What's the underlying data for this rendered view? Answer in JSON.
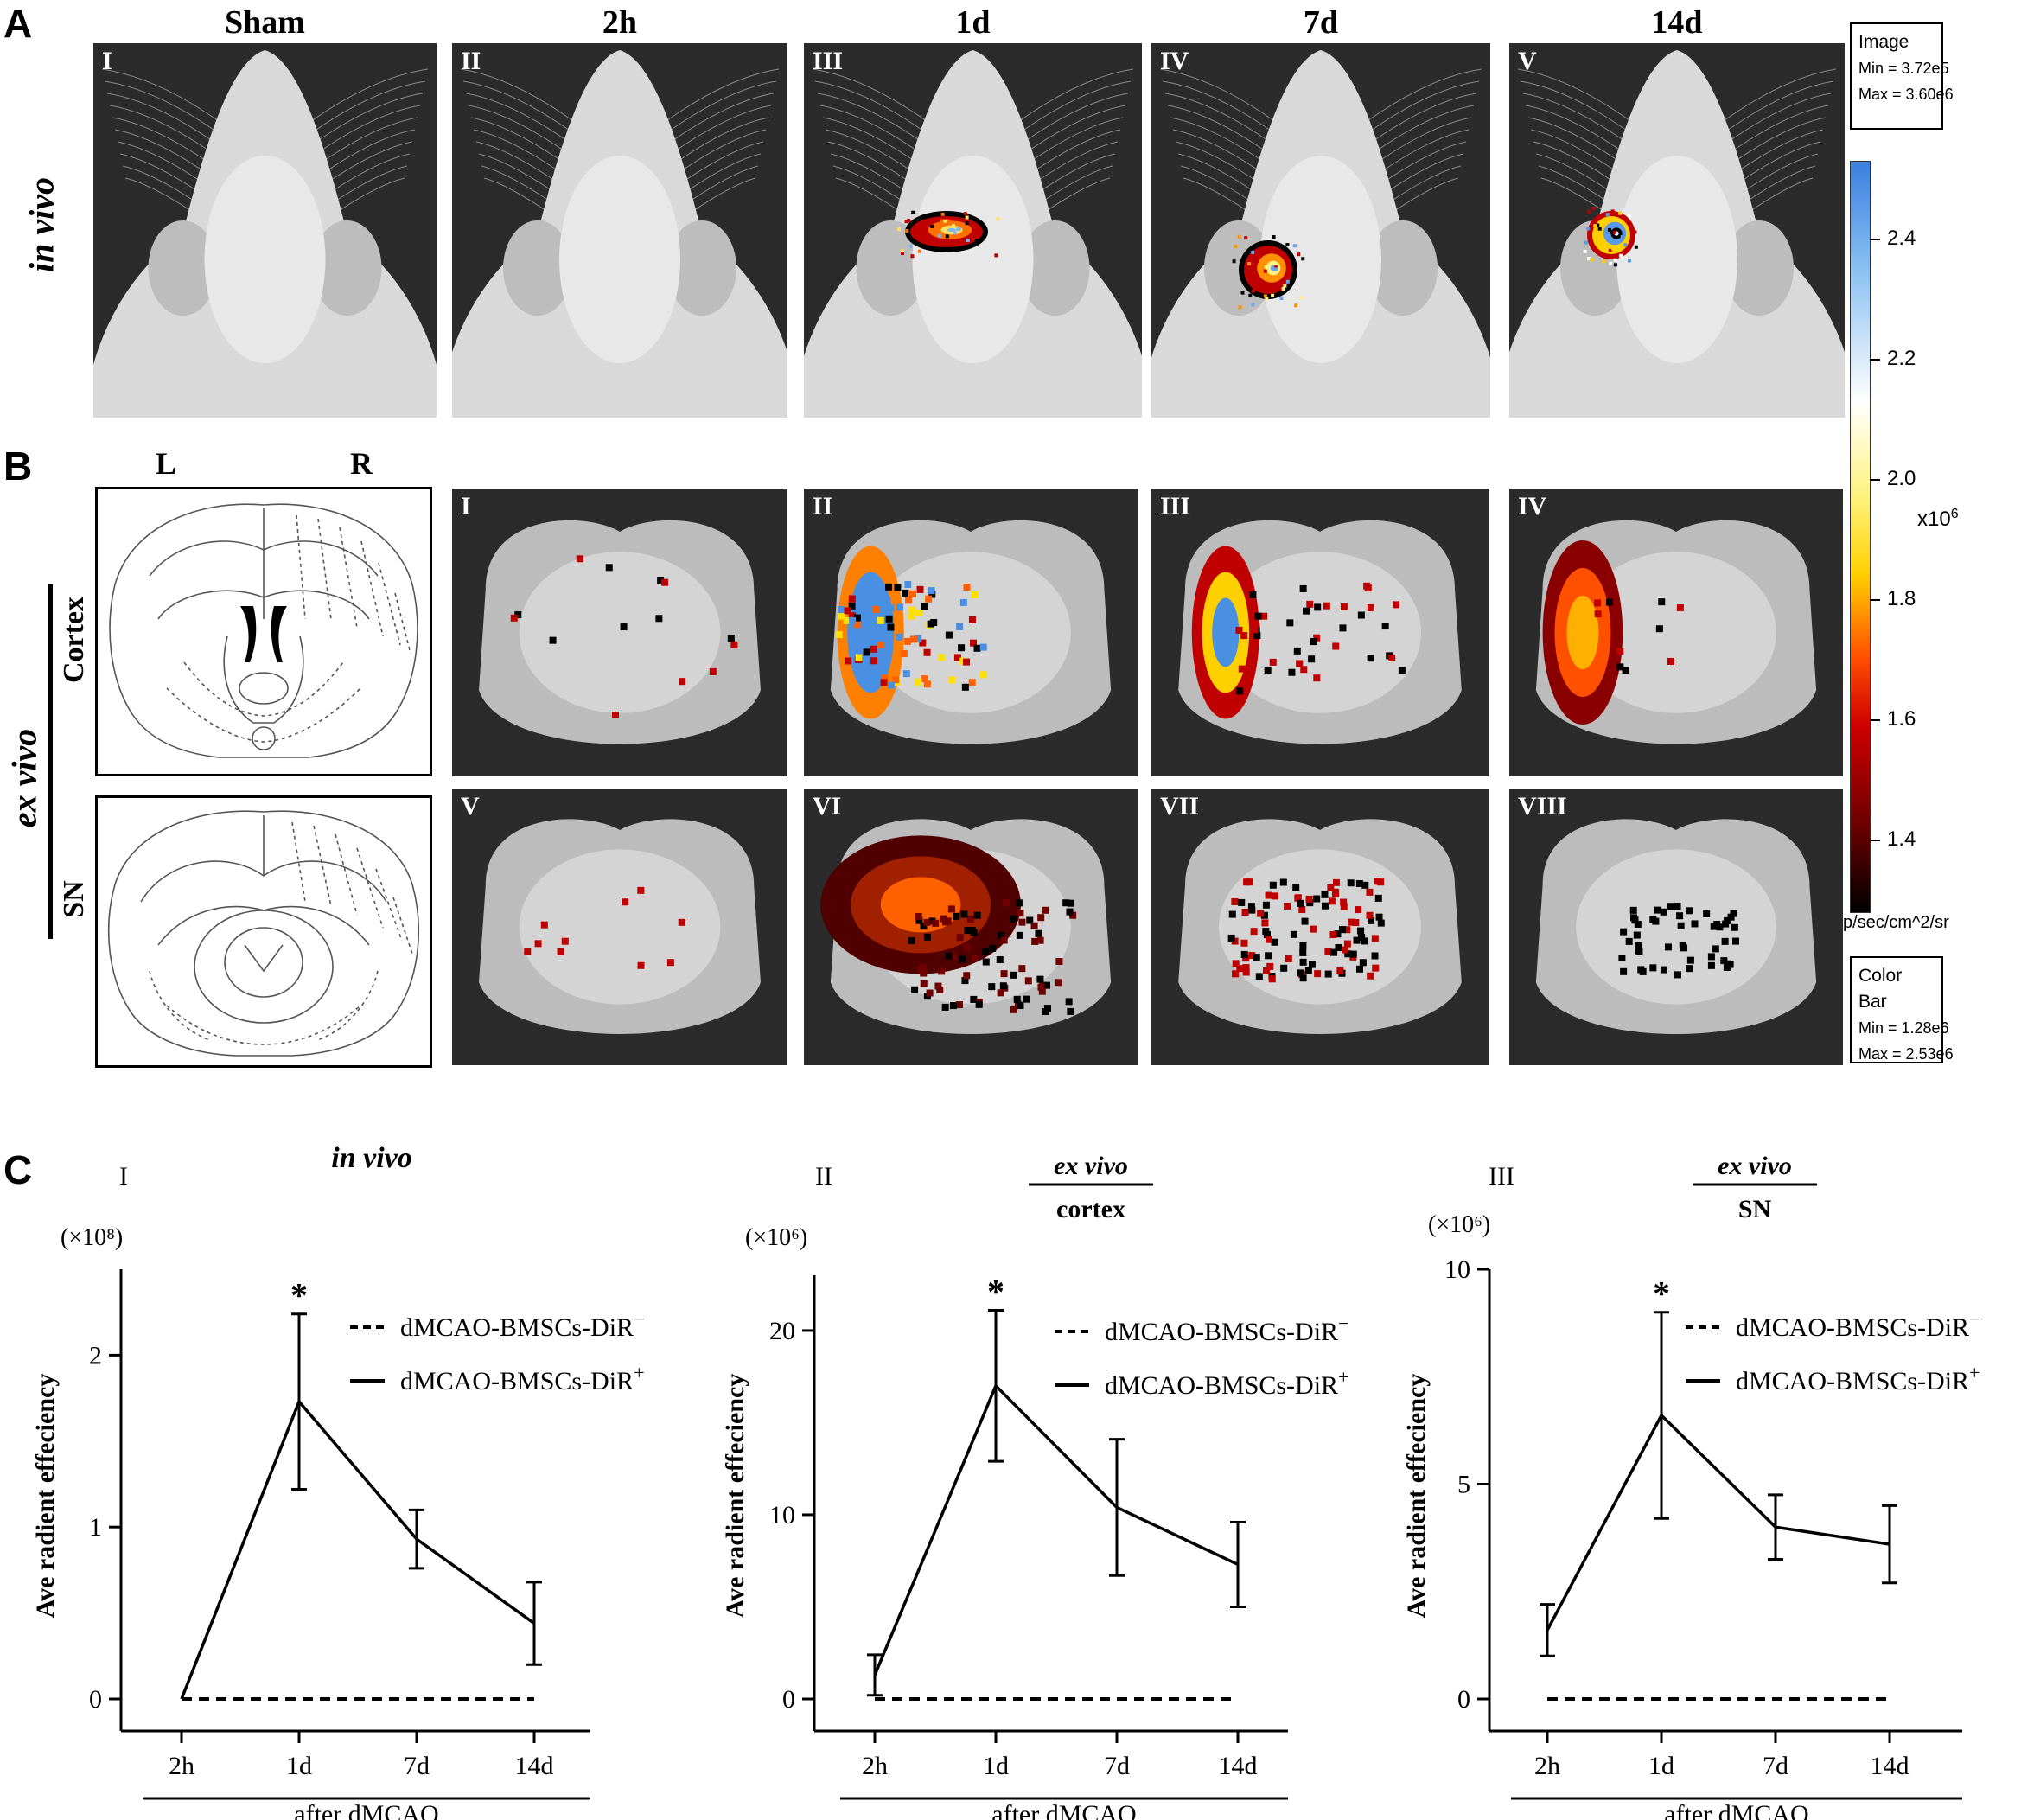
{
  "panelA": {
    "letter": "A",
    "row_label": "in vivo",
    "columns": [
      {
        "header": "Sham",
        "roman": "I"
      },
      {
        "header": "2h",
        "roman": "II"
      },
      {
        "header": "1d",
        "roman": "III"
      },
      {
        "header": "7d",
        "roman": "IV"
      },
      {
        "header": "14d",
        "roman": "V"
      }
    ]
  },
  "panelB": {
    "letter": "B",
    "side_left": "L",
    "side_right": "R",
    "row_label": "ex vivo",
    "cortex_label": "Cortex",
    "sn_label": "SN",
    "tiles": [
      "I",
      "II",
      "III",
      "IV",
      "V",
      "VI",
      "VII",
      "VIII"
    ]
  },
  "colorbar": {
    "image_box": {
      "title": "Image",
      "min": "Min = 3.72e5",
      "max": "Max = 3.60e6"
    },
    "ticks": [
      "2.4",
      "2.2",
      "2.0",
      "1.8",
      "1.6",
      "1.4"
    ],
    "multiplier": "x10",
    "multiplier_exp": "6",
    "unit": "p/sec/cm^2/sr",
    "bar_box": {
      "title": "Color Bar",
      "min": "Min = 1.28e6",
      "max": "Max = 2.53e6"
    },
    "colors": {
      "top": "#4a90e2",
      "mid": "#ffffff",
      "yellow": "#ffe000",
      "red": "#e00000",
      "bottom": "#000000"
    }
  },
  "panelC": {
    "letter": "C",
    "legend_neg": "dMCAO-BMSCs-DiR",
    "legend_neg_sup": "−",
    "legend_pos": "dMCAO-BMSCs-DiR",
    "legend_pos_sup": "+"
  },
  "chart_data": [
    {
      "type": "line",
      "roman": "I",
      "title": "in vivo",
      "subtitle": "",
      "scale_label": "(×10⁸)",
      "ylabel": "Ave radient effeciency",
      "xlabel": "after dMCAO",
      "categories": [
        "2h",
        "1d",
        "7d",
        "14d"
      ],
      "ylim": [
        0,
        2.5
      ],
      "yticks": [
        0,
        1,
        2
      ],
      "ytick_labels": [
        "0",
        "1",
        "2"
      ],
      "annotation": "*",
      "annotation_index": 1,
      "series": [
        {
          "name": "dMCAO-BMSCs-DiR−",
          "style": "dashed",
          "values": [
            0,
            0,
            0,
            0
          ]
        },
        {
          "name": "dMCAO-BMSCs-DiR+",
          "style": "solid",
          "values": [
            0,
            1.73,
            0.93,
            0.44
          ],
          "error": [
            0,
            0.51,
            0.17,
            0.24
          ]
        }
      ]
    },
    {
      "type": "line",
      "roman": "II",
      "title": "ex vivo",
      "subtitle": "cortex",
      "scale_label": "(×10⁶)",
      "ylabel": "Ave radient effeciency",
      "xlabel": "after dMCAO",
      "categories": [
        "2h",
        "1d",
        "7d",
        "14d"
      ],
      "ylim": [
        0,
        23
      ],
      "yticks": [
        0,
        10,
        20
      ],
      "ytick_labels": [
        "0",
        "10",
        "20"
      ],
      "annotation": "*",
      "annotation_index": 1,
      "series": [
        {
          "name": "dMCAO-BMSCs-DiR−",
          "style": "dashed",
          "values": [
            0,
            0,
            0,
            0
          ]
        },
        {
          "name": "dMCAO-BMSCs-DiR+",
          "style": "solid",
          "values": [
            1.3,
            17.0,
            10.4,
            7.3
          ],
          "error": [
            1.1,
            4.1,
            3.7,
            2.3
          ]
        }
      ]
    },
    {
      "type": "line",
      "roman": "III",
      "title": "ex vivo",
      "subtitle": "SN",
      "scale_label": "(×10⁶)",
      "ylabel": "Ave radient effeciency",
      "xlabel": "after dMCAO",
      "categories": [
        "2h",
        "1d",
        "7d",
        "14d"
      ],
      "ylim": [
        0,
        10
      ],
      "yticks": [
        0,
        5,
        10
      ],
      "ytick_labels": [
        "0",
        "5",
        "10"
      ],
      "annotation": "*",
      "annotation_index": 1,
      "series": [
        {
          "name": "dMCAO-BMSCs-DiR−",
          "style": "dashed",
          "values": [
            0,
            0,
            0,
            0
          ]
        },
        {
          "name": "dMCAO-BMSCs-DiR+",
          "style": "solid",
          "values": [
            1.6,
            6.6,
            4.0,
            3.6
          ],
          "error": [
            0.6,
            2.4,
            0.75,
            0.9
          ]
        }
      ]
    }
  ]
}
